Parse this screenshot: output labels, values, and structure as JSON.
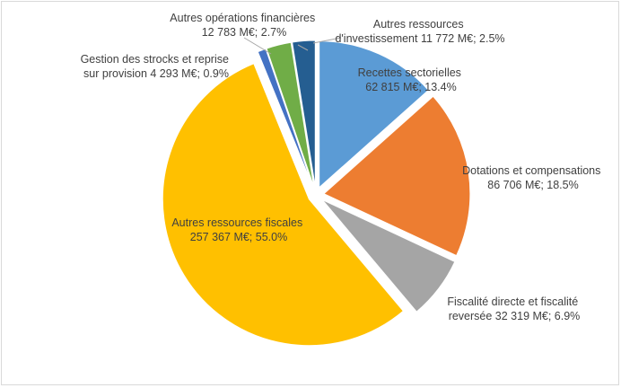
{
  "chart_data": {
    "type": "pie",
    "title": "",
    "unit": "M€",
    "slices": [
      {
        "name": "Recettes sectorielles",
        "value": 62815,
        "percent": 13.4,
        "value_label": "62 815 M€; 13.4%",
        "color": "#5b9bd5"
      },
      {
        "name": "Dotations et compensations",
        "value": 86706,
        "percent": 18.5,
        "value_label": "86 706 M€; 18.5%",
        "color": "#ed7d31"
      },
      {
        "name": "Fiscalité directe et fiscalité reversée",
        "value": 32319,
        "percent": 6.9,
        "value_label": "reversée 32 319 M€; 6.9%",
        "label_line1": "Fiscalité directe et fiscalité",
        "color": "#a5a5a5"
      },
      {
        "name": "Autres ressources fiscales",
        "value": 257367,
        "percent": 55.0,
        "value_label": "257 367 M€; 55.0%",
        "color": "#ffc000"
      },
      {
        "name": "Gestion des strocks et reprise sur provision",
        "value": 4293,
        "percent": 0.9,
        "value_label": "sur provision 4 293 M€; 0.9%",
        "label_line1": "Gestion des strocks et reprise",
        "color": "#4472c4"
      },
      {
        "name": "Autres opérations financières",
        "value": 12783,
        "percent": 2.7,
        "value_label": "12 783 M€; 2.7%",
        "color": "#70ad47"
      },
      {
        "name": "Autres ressources d'investissement",
        "value": 11772,
        "percent": 2.5,
        "value_label": "d'investissement 11 772 M€; 2.5%",
        "label_line1": "Autres ressources",
        "color": "#255e91"
      }
    ]
  }
}
